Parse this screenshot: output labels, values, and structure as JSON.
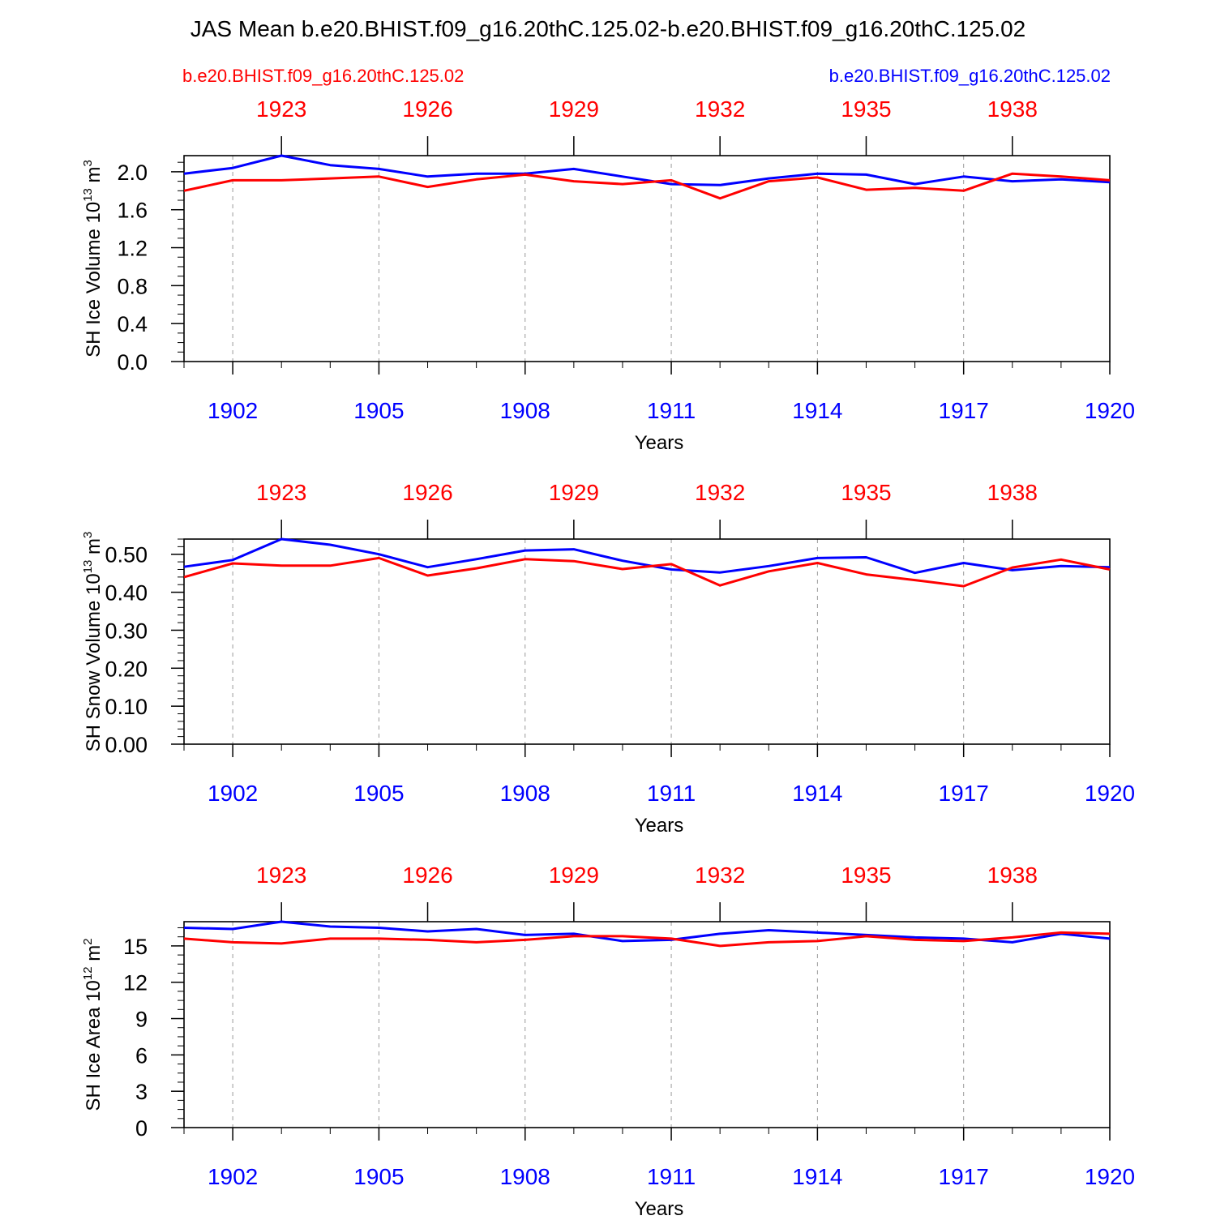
{
  "title": "JAS Mean b.e20.BHIST.f09_g16.20thC.125.02-b.e20.BHIST.f09_g16.20thC.125.02",
  "legend": {
    "left": "b.e20.BHIST.f09_g16.20thC.125.02",
    "right": "b.e20.BHIST.f09_g16.20thC.125.02"
  },
  "colors": {
    "series_red": "#ff0000",
    "series_blue": "#0000ff",
    "axis": "#000000",
    "grid": "#999999"
  },
  "chart_data": [
    {
      "type": "line",
      "ylabel_main": "SH Ice Volume 10",
      "ylabel_exp": "13",
      "ylabel_unit": " m",
      "ylabel_unit_exp": "3",
      "xlabel": "Years",
      "xlim": [
        1901,
        1920
      ],
      "ylim": [
        0,
        2.17
      ],
      "yticks": [
        {
          "v": 0,
          "label": "0.0"
        },
        {
          "v": 0.4,
          "label": "0.4"
        },
        {
          "v": 0.8,
          "label": "0.8"
        },
        {
          "v": 1.2,
          "label": "1.2"
        },
        {
          "v": 1.6,
          "label": "1.6"
        },
        {
          "v": 2.0,
          "label": "2.0"
        }
      ],
      "ymin_step": 0.1,
      "bottom_ticks": [
        {
          "v": 1902,
          "label": "1902"
        },
        {
          "v": 1905,
          "label": "1905"
        },
        {
          "v": 1908,
          "label": "1908"
        },
        {
          "v": 1911,
          "label": "1911"
        },
        {
          "v": 1914,
          "label": "1914"
        },
        {
          "v": 1917,
          "label": "1917"
        },
        {
          "v": 1920,
          "label": "1920"
        }
      ],
      "top_ticks": [
        {
          "v": 1902,
          "label": "1923"
        },
        {
          "v": 1905,
          "label": "1926"
        },
        {
          "v": 1908,
          "label": "1929"
        },
        {
          "v": 1911,
          "label": "1932"
        },
        {
          "v": 1914,
          "label": "1935"
        },
        {
          "v": 1917,
          "label": "1938"
        }
      ],
      "x": [
        1901,
        1902,
        1903,
        1904,
        1905,
        1906,
        1907,
        1908,
        1909,
        1910,
        1911,
        1912,
        1913,
        1914,
        1915,
        1916,
        1917,
        1918,
        1919,
        1920
      ],
      "series": [
        {
          "color": "#0000ff",
          "values": [
            1.98,
            2.04,
            2.17,
            2.07,
            2.03,
            1.95,
            1.98,
            1.98,
            2.03,
            1.95,
            1.87,
            1.86,
            1.93,
            1.98,
            1.97,
            1.87,
            1.95,
            1.9,
            1.92,
            1.89
          ]
        },
        {
          "color": "#ff0000",
          "values": [
            1.8,
            1.91,
            1.91,
            1.93,
            1.95,
            1.84,
            1.92,
            1.97,
            1.9,
            1.87,
            1.91,
            1.72,
            1.9,
            1.94,
            1.81,
            1.83,
            1.8,
            1.98,
            1.95,
            1.91
          ]
        }
      ]
    },
    {
      "type": "line",
      "ylabel_main": "SH Snow Volume 10",
      "ylabel_exp": "13",
      "ylabel_unit": " m",
      "ylabel_unit_exp": "3",
      "xlabel": "Years",
      "xlim": [
        1901,
        1920
      ],
      "ylim": [
        0,
        0.54
      ],
      "yticks": [
        {
          "v": 0,
          "label": "0.00"
        },
        {
          "v": 0.1,
          "label": "0.10"
        },
        {
          "v": 0.2,
          "label": "0.20"
        },
        {
          "v": 0.3,
          "label": "0.30"
        },
        {
          "v": 0.4,
          "label": "0.40"
        },
        {
          "v": 0.5,
          "label": "0.50"
        }
      ],
      "ymin_step": 0.02,
      "bottom_ticks": [
        {
          "v": 1902,
          "label": "1902"
        },
        {
          "v": 1905,
          "label": "1905"
        },
        {
          "v": 1908,
          "label": "1908"
        },
        {
          "v": 1911,
          "label": "1911"
        },
        {
          "v": 1914,
          "label": "1914"
        },
        {
          "v": 1917,
          "label": "1917"
        },
        {
          "v": 1920,
          "label": "1920"
        }
      ],
      "top_ticks": [
        {
          "v": 1902,
          "label": "1923"
        },
        {
          "v": 1905,
          "label": "1926"
        },
        {
          "v": 1908,
          "label": "1929"
        },
        {
          "v": 1911,
          "label": "1932"
        },
        {
          "v": 1914,
          "label": "1935"
        },
        {
          "v": 1917,
          "label": "1938"
        }
      ],
      "x": [
        1901,
        1902,
        1903,
        1904,
        1905,
        1906,
        1907,
        1908,
        1909,
        1910,
        1911,
        1912,
        1913,
        1914,
        1915,
        1916,
        1917,
        1918,
        1919,
        1920
      ],
      "series": [
        {
          "color": "#0000ff",
          "values": [
            0.467,
            0.485,
            0.54,
            0.525,
            0.5,
            0.466,
            0.487,
            0.51,
            0.513,
            0.483,
            0.46,
            0.452,
            0.469,
            0.49,
            0.492,
            0.451,
            0.477,
            0.458,
            0.469,
            0.466
          ]
        },
        {
          "color": "#ff0000",
          "values": [
            0.44,
            0.476,
            0.47,
            0.47,
            0.49,
            0.444,
            0.463,
            0.487,
            0.482,
            0.461,
            0.474,
            0.418,
            0.455,
            0.477,
            0.447,
            0.432,
            0.416,
            0.465,
            0.486,
            0.46
          ]
        }
      ]
    },
    {
      "type": "line",
      "ylabel_main": "SH Ice Area 10",
      "ylabel_exp": "12",
      "ylabel_unit": " m",
      "ylabel_unit_exp": "2",
      "xlabel": "Years",
      "xlim": [
        1901,
        1920
      ],
      "ylim": [
        0,
        17.0
      ],
      "yticks": [
        {
          "v": 0,
          "label": "0"
        },
        {
          "v": 3,
          "label": "3"
        },
        {
          "v": 6,
          "label": "6"
        },
        {
          "v": 9,
          "label": "9"
        },
        {
          "v": 12,
          "label": "12"
        },
        {
          "v": 15,
          "label": "15"
        }
      ],
      "ymin_step": 0.75,
      "bottom_ticks": [
        {
          "v": 1902,
          "label": "1902"
        },
        {
          "v": 1905,
          "label": "1905"
        },
        {
          "v": 1908,
          "label": "1908"
        },
        {
          "v": 1911,
          "label": "1911"
        },
        {
          "v": 1914,
          "label": "1914"
        },
        {
          "v": 1917,
          "label": "1917"
        },
        {
          "v": 1920,
          "label": "1920"
        }
      ],
      "top_ticks": [
        {
          "v": 1902,
          "label": "1923"
        },
        {
          "v": 1905,
          "label": "1926"
        },
        {
          "v": 1908,
          "label": "1929"
        },
        {
          "v": 1911,
          "label": "1932"
        },
        {
          "v": 1914,
          "label": "1935"
        },
        {
          "v": 1917,
          "label": "1938"
        }
      ],
      "x": [
        1901,
        1902,
        1903,
        1904,
        1905,
        1906,
        1907,
        1908,
        1909,
        1910,
        1911,
        1912,
        1913,
        1914,
        1915,
        1916,
        1917,
        1918,
        1919,
        1920
      ],
      "series": [
        {
          "color": "#0000ff",
          "values": [
            16.5,
            16.4,
            17.0,
            16.6,
            16.5,
            16.2,
            16.4,
            15.9,
            16.0,
            15.4,
            15.5,
            16.0,
            16.3,
            16.1,
            15.9,
            15.7,
            15.6,
            15.3,
            16.0,
            15.6
          ]
        },
        {
          "color": "#ff0000",
          "values": [
            15.6,
            15.3,
            15.2,
            15.6,
            15.6,
            15.5,
            15.3,
            15.5,
            15.8,
            15.8,
            15.6,
            15.0,
            15.3,
            15.4,
            15.8,
            15.5,
            15.4,
            15.7,
            16.1,
            16.0
          ]
        }
      ]
    }
  ]
}
